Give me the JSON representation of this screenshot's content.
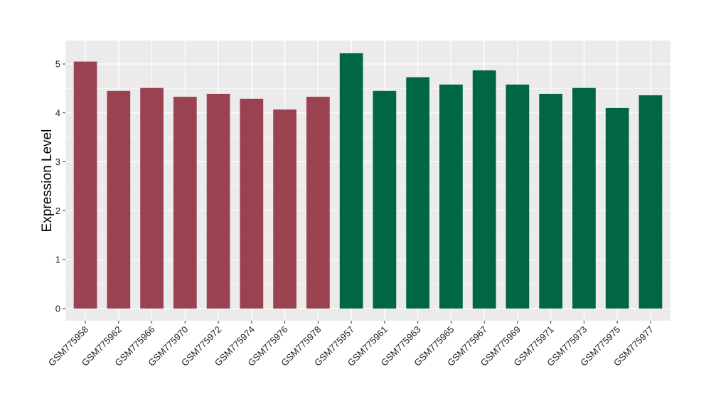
{
  "chart_data": {
    "type": "bar",
    "title": "",
    "xlabel": "",
    "ylabel": "Expression Level",
    "ylim": [
      -0.25,
      5.48
    ],
    "yticks": [
      0,
      1,
      2,
      3,
      4,
      5
    ],
    "grid": true,
    "categories": [
      "GSM775958",
      "GSM775962",
      "GSM775966",
      "GSM775970",
      "GSM775972",
      "GSM775974",
      "GSM775976",
      "GSM775978",
      "GSM775957",
      "GSM775961",
      "GSM775963",
      "GSM775965",
      "GSM775967",
      "GSM775969",
      "GSM775971",
      "GSM775973",
      "GSM775975",
      "GSM775977"
    ],
    "values": [
      5.05,
      4.45,
      4.51,
      4.33,
      4.39,
      4.29,
      4.07,
      4.33,
      5.22,
      4.45,
      4.73,
      4.58,
      4.87,
      4.58,
      4.39,
      4.51,
      4.1,
      4.36
    ],
    "groups": [
      0,
      0,
      0,
      0,
      0,
      0,
      0,
      0,
      1,
      1,
      1,
      1,
      1,
      1,
      1,
      1,
      1,
      1
    ],
    "group_colors": [
      "#9A4250",
      "#006645"
    ],
    "panel_color": "#EBEBEB",
    "grid_color": "#FFFFFF"
  }
}
